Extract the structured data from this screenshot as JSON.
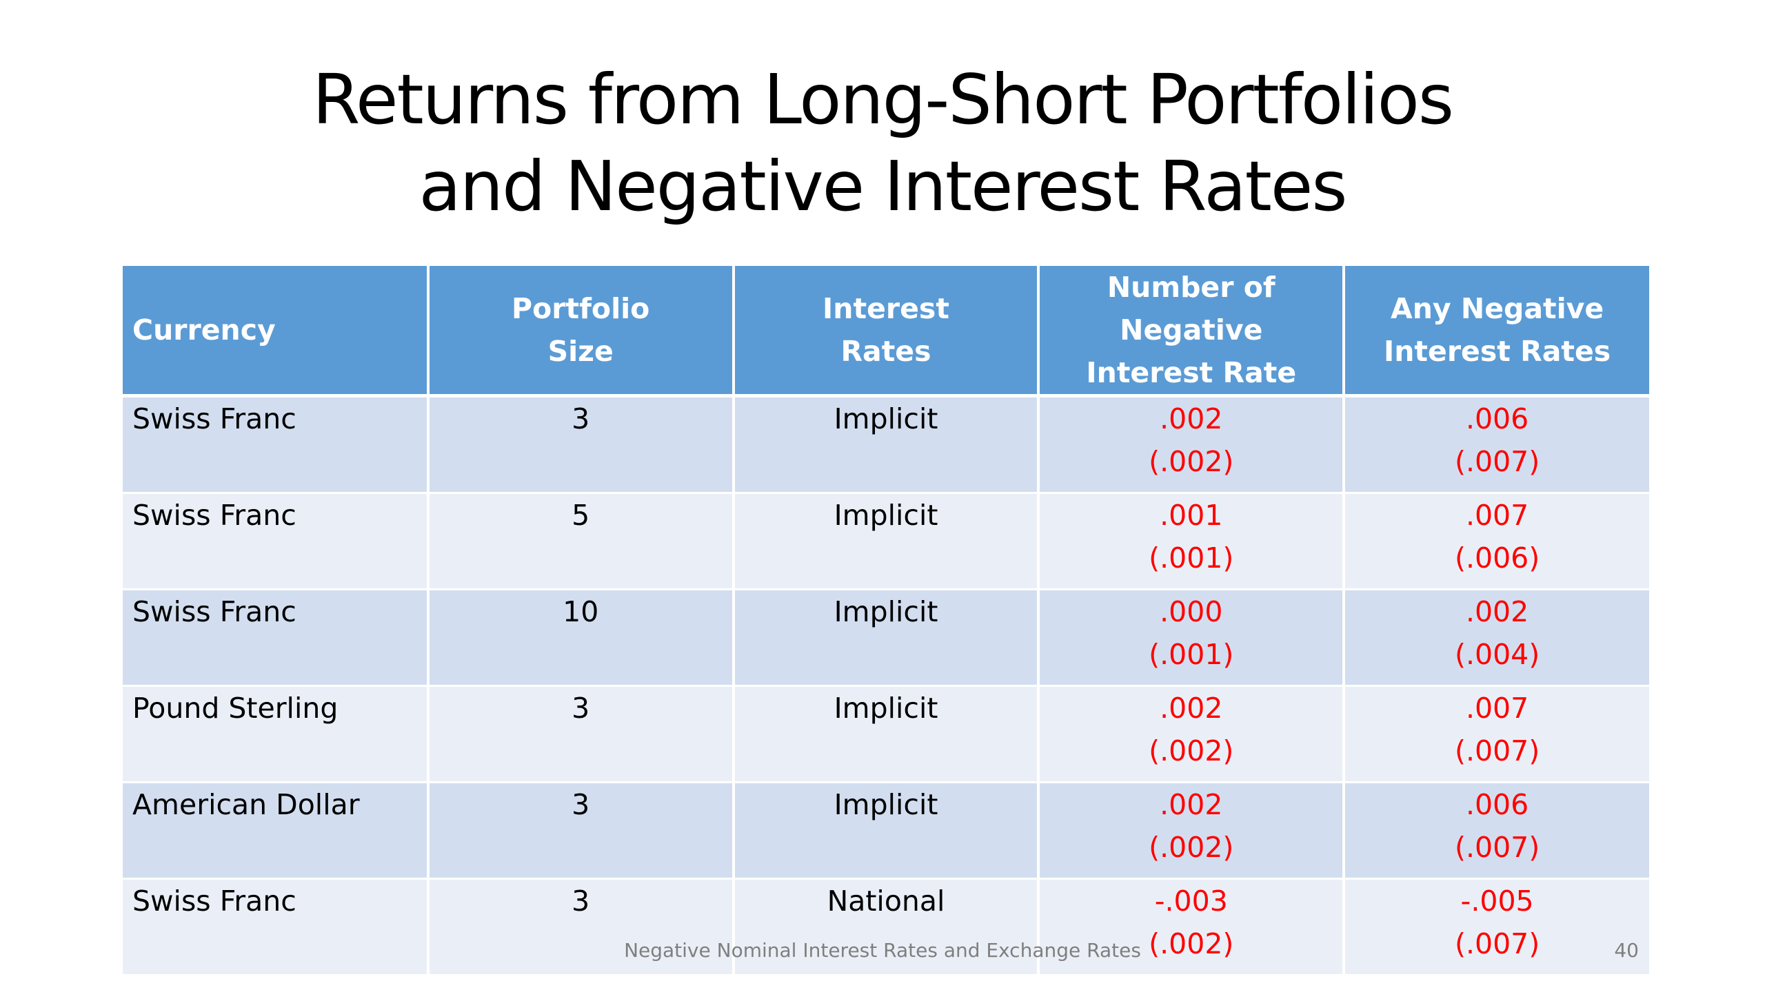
{
  "title": {
    "line1": "Returns from Long-Short Portfolios",
    "line2": "and  Negative Interest Rates"
  },
  "table": {
    "headers": [
      {
        "line1": "Currency",
        "line2": ""
      },
      {
        "line1": "Portfolio",
        "line2": "Size"
      },
      {
        "line1": "Interest",
        "line2": "Rates"
      },
      {
        "line1": "Number of Negative",
        "line2": "Interest Rate"
      },
      {
        "line1": "Any Negative",
        "line2": "Interest Rates"
      }
    ],
    "rows": [
      {
        "currency": "Swiss Franc",
        "size": "3",
        "rates": "Implicit",
        "num_coef": ".002",
        "num_se": "(.002)",
        "any_coef": ".006",
        "any_se": "(.007)"
      },
      {
        "currency": "Swiss Franc",
        "size": "5",
        "rates": "Implicit",
        "num_coef": ".001",
        "num_se": "(.001)",
        "any_coef": ".007",
        "any_se": "(.006)"
      },
      {
        "currency": "Swiss Franc",
        "size": "10",
        "rates": "Implicit",
        "num_coef": ".000",
        "num_se": "(.001)",
        "any_coef": ".002",
        "any_se": "(.004)"
      },
      {
        "currency": "Pound Sterling",
        "size": "3",
        "rates": "Implicit",
        "num_coef": ".002",
        "num_se": "(.002)",
        "any_coef": ".007",
        "any_se": "(.007)"
      },
      {
        "currency": "American Dollar",
        "size": "3",
        "rates": "Implicit",
        "num_coef": ".002",
        "num_se": "(.002)",
        "any_coef": ".006",
        "any_se": "(.007)"
      },
      {
        "currency": "Swiss Franc",
        "size": "3",
        "rates": "National",
        "num_coef": "-.003",
        "num_se": "(.002)",
        "any_coef": "-.005",
        "any_se": "(.007)"
      }
    ]
  },
  "footer": {
    "text": "Negative Nominal Interest Rates and Exchange Rates",
    "page_number": "40"
  },
  "colors": {
    "header_bg": "#5b9bd5",
    "row_odd_bg": "#d2deef",
    "row_even_bg": "#eaeff7",
    "value_text": "#ff0000"
  }
}
